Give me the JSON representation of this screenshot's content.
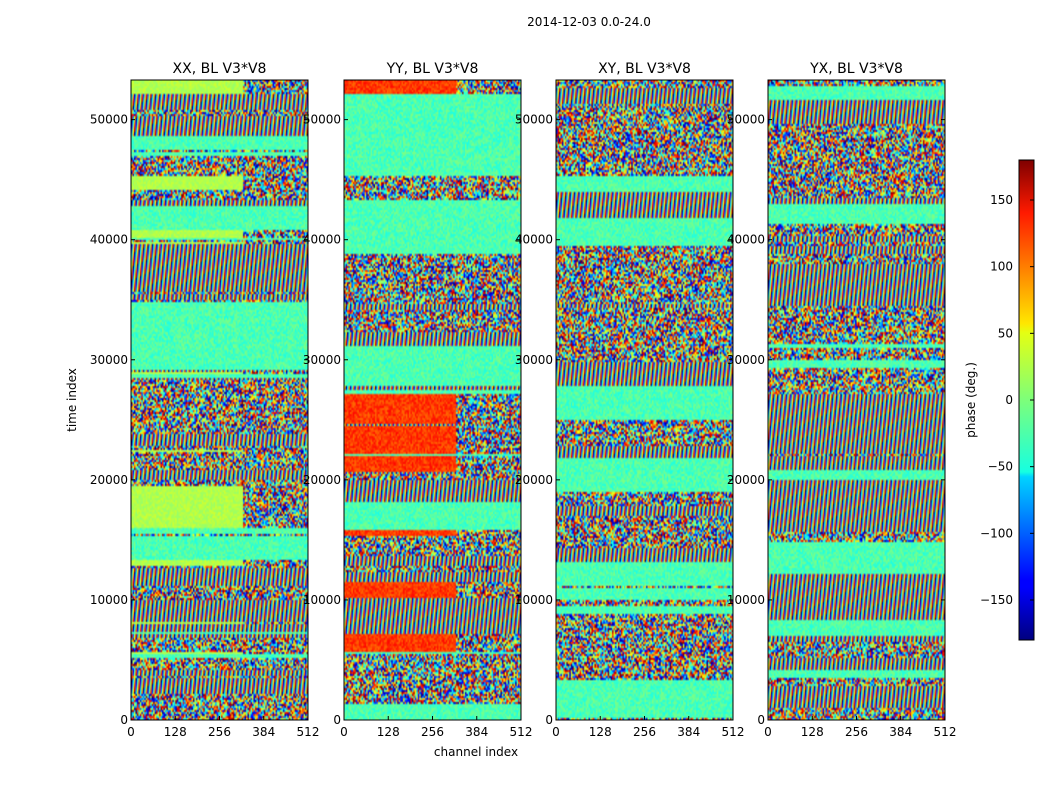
{
  "figure": {
    "suptitle": "2014-12-03 0.0-24.0"
  },
  "chart_data": {
    "type": "heatmap",
    "ylabel": "time index",
    "xlabel": "channel index",
    "xlim": [
      0,
      512
    ],
    "ylim": [
      0,
      53300
    ],
    "xticks": [
      0,
      128,
      256,
      384,
      512
    ],
    "yticks": [
      0,
      10000,
      20000,
      30000,
      40000,
      50000
    ],
    "panels": [
      {
        "title": "XX, BL V3*V8"
      },
      {
        "title": "YY, BL V3*V8"
      },
      {
        "title": "XY, BL V3*V8"
      },
      {
        "title": "YX, BL V3*V8"
      }
    ],
    "colorbar": {
      "label": "phase (deg.)",
      "colormap": "jet",
      "range": [
        -180,
        180
      ],
      "ticks": [
        150,
        100,
        50,
        0,
        -50,
        -100,
        -150
      ],
      "tick_labels": [
        "150",
        "100",
        "50",
        "0",
        "−50",
        "−100",
        "−150"
      ]
    }
  }
}
